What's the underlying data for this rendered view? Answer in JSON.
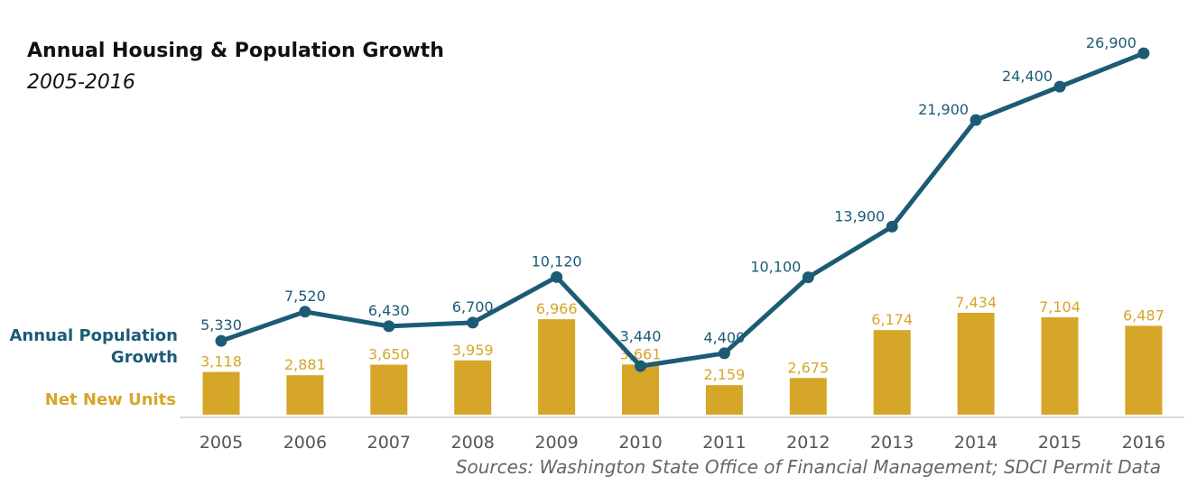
{
  "chart_data": {
    "type": "bar+line",
    "title": "Annual Housing & Population Growth",
    "subtitle": "2005-2016",
    "categories": [
      "2005",
      "2006",
      "2007",
      "2008",
      "2009",
      "2010",
      "2011",
      "2012",
      "2013",
      "2014",
      "2015",
      "2016"
    ],
    "series": [
      {
        "name": "Annual Population Growth",
        "type": "line",
        "color": "#1b5b75",
        "values": [
          5330,
          7520,
          6430,
          6700,
          10120,
          3440,
          4400,
          10100,
          13900,
          21900,
          24400,
          26900
        ],
        "labels": [
          "5,330",
          "7,520",
          "6,430",
          "6,700",
          "10,120",
          "3,440",
          "4,400",
          "10,100",
          "13,900",
          "21,900",
          "24,400",
          "26,900"
        ]
      },
      {
        "name": "Net New Units",
        "type": "bar",
        "color": "#d6a628",
        "values": [
          3118,
          2881,
          3650,
          3959,
          6966,
          3661,
          2159,
          2675,
          6174,
          7434,
          7104,
          6487
        ],
        "labels": [
          "3,118",
          "2,881",
          "3,650",
          "3,959",
          "6,966",
          "3,661",
          "2,159",
          "2,675",
          "6,174",
          "7,434",
          "7,104",
          "6,487"
        ]
      }
    ],
    "legend_labels": {
      "line_line1": "Annual Population",
      "line_line2": "Growth",
      "bar": "Net New Units"
    },
    "legend_placement": "left",
    "grid": false,
    "source": "Sources: Washington State Office of Financial Management; SDCI Permit Data"
  }
}
